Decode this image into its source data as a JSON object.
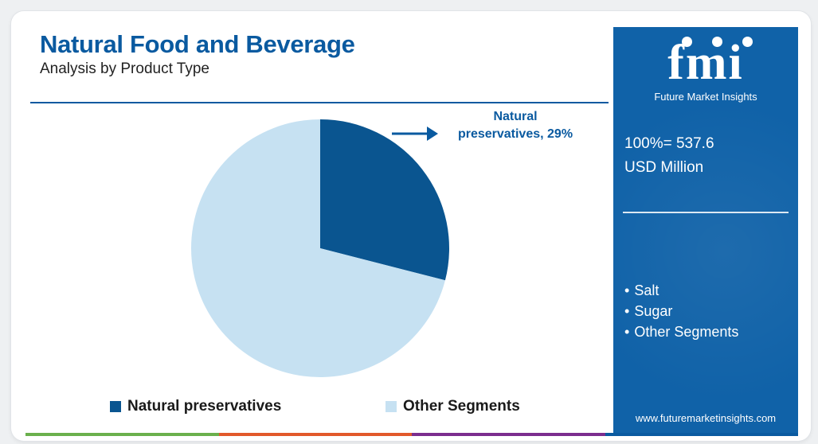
{
  "header": {
    "title": "Natural Food and Beverage",
    "subtitle": "Analysis by Product Type"
  },
  "callout": {
    "line1": "Natural",
    "line2": "preservatives, 29%"
  },
  "chart_data": {
    "type": "pie",
    "slices": [
      {
        "label": "Natural preservatives",
        "value": 29,
        "color": "#0a5590"
      },
      {
        "label": "Other Segments",
        "value": 71,
        "color": "#c6e1f2"
      }
    ]
  },
  "legend": {
    "items": [
      {
        "label": "Natural preservatives",
        "color": "#0a5590"
      },
      {
        "label": "Other Segments",
        "color": "#c6e1f2"
      }
    ]
  },
  "sidebar": {
    "logo_text": "fmi",
    "logo_subtitle": "Future Market Insights",
    "total_line1": "100%= 537.6",
    "total_line2": "USD Million",
    "segments": [
      "Salt",
      "Sugar",
      "Other Segments"
    ],
    "website": "www.futuremarketinsights.com",
    "background_color": "#1062a8"
  },
  "bottom_bar_colors": [
    "#6ab04c",
    "#e2592a",
    "#7b2d8e",
    "#0a5aa0"
  ]
}
